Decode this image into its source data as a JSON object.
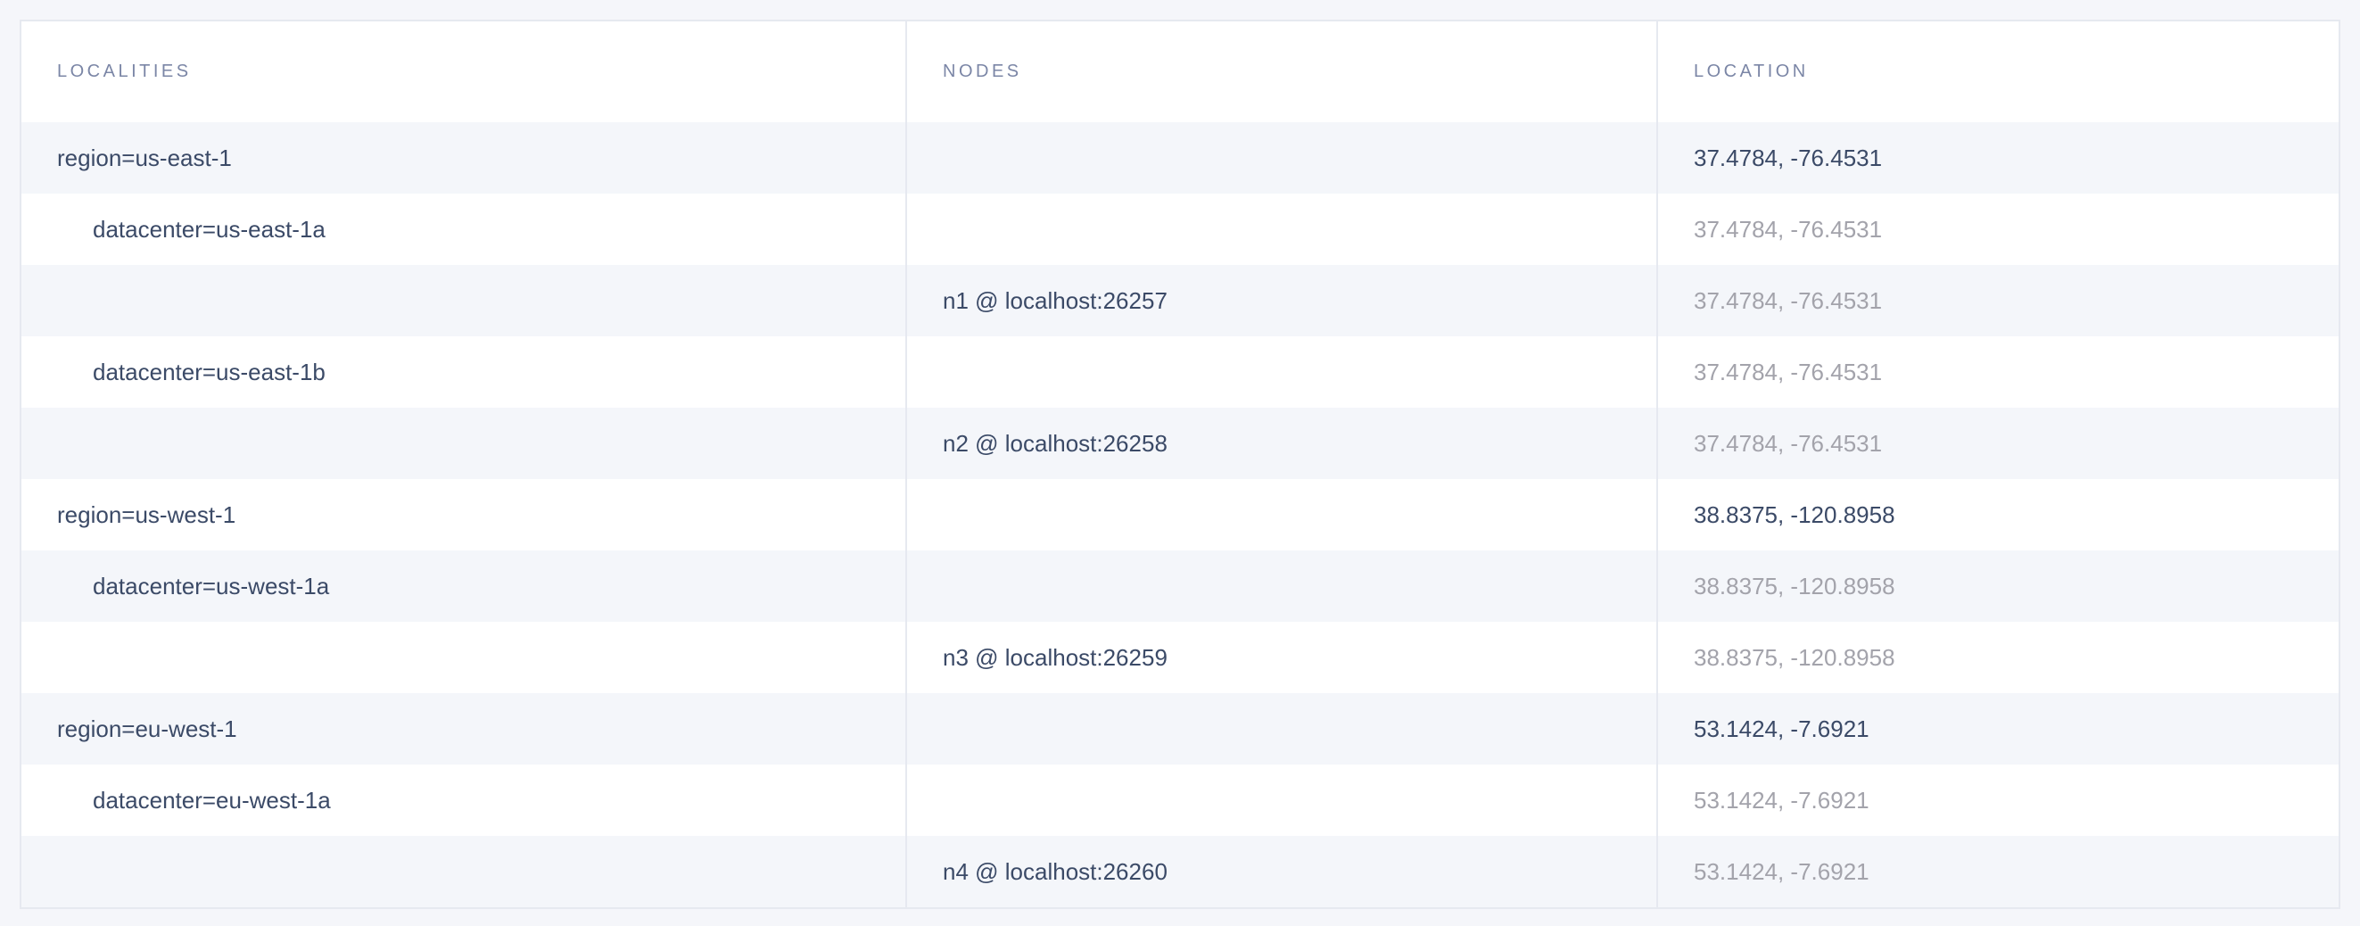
{
  "columns": [
    "LOCALITIES",
    "NODES",
    "LOCATION"
  ],
  "rows": [
    {
      "locality": "region=us-east-1",
      "level": 0,
      "node": "",
      "location": "37.4784, -76.4531",
      "muted": false
    },
    {
      "locality": "datacenter=us-east-1a",
      "level": 1,
      "node": "",
      "location": "37.4784, -76.4531",
      "muted": true
    },
    {
      "locality": "",
      "level": 2,
      "node": "n1 @ localhost:26257",
      "location": "37.4784, -76.4531",
      "muted": true
    },
    {
      "locality": "datacenter=us-east-1b",
      "level": 1,
      "node": "",
      "location": "37.4784, -76.4531",
      "muted": true
    },
    {
      "locality": "",
      "level": 2,
      "node": "n2 @ localhost:26258",
      "location": "37.4784, -76.4531",
      "muted": true
    },
    {
      "locality": "region=us-west-1",
      "level": 0,
      "node": "",
      "location": "38.8375, -120.8958",
      "muted": false
    },
    {
      "locality": "datacenter=us-west-1a",
      "level": 1,
      "node": "",
      "location": "38.8375, -120.8958",
      "muted": true
    },
    {
      "locality": "",
      "level": 2,
      "node": "n3 @ localhost:26259",
      "location": "38.8375, -120.8958",
      "muted": true
    },
    {
      "locality": "region=eu-west-1",
      "level": 0,
      "node": "",
      "location": "53.1424, -7.6921",
      "muted": false
    },
    {
      "locality": "datacenter=eu-west-1a",
      "level": 1,
      "node": "",
      "location": "53.1424, -7.6921",
      "muted": true
    },
    {
      "locality": "",
      "level": 2,
      "node": "n4 @ localhost:26260",
      "location": "53.1424, -7.6921",
      "muted": true
    }
  ]
}
